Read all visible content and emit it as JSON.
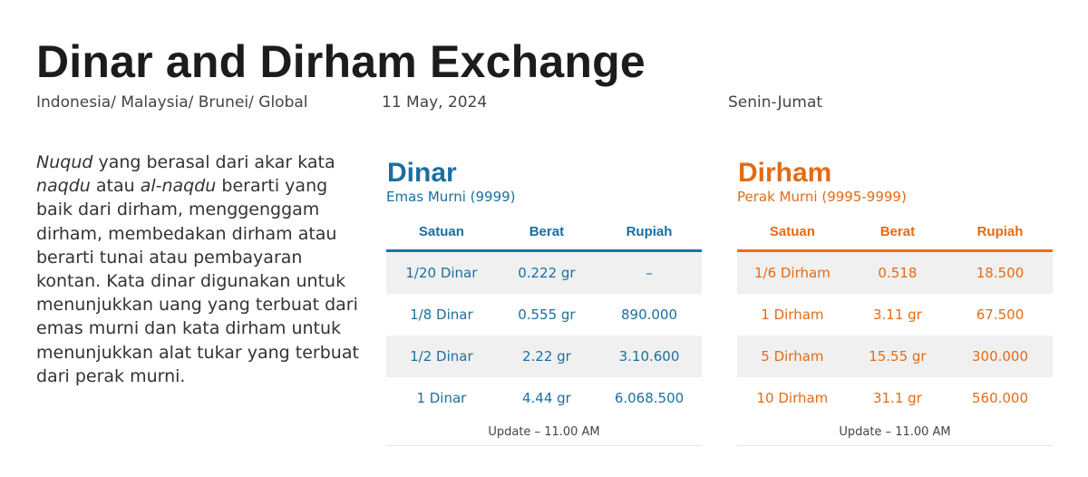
{
  "header": {
    "title": "Dinar and Dirham Exchange",
    "regions": "Indonesia/ Malaysia/ Brunei/ Global",
    "date": "11 May, 2024",
    "days": "Senin-Jumat"
  },
  "description": {
    "part1_italic": "Nuqud",
    "part2": " yang berasal dari akar kata ",
    "part3_italic": "naqdu",
    "part4": " atau ",
    "part5_italic": "al-naqdu",
    "part6": " berarti yang baik dari dirham, menggenggam dirham, membedakan dirham atau berarti tunai atau pembayaran kontan. Kata dinar digunakan untuk menunjukkan uang yang terbuat dari emas murni dan kata dirham untuk menunjukkan alat tukar yang terbuat dari perak murni."
  },
  "dinar": {
    "title": "Dinar",
    "subtitle": "Emas Murni (9999)",
    "columns": [
      "Satuan",
      "Berat",
      "Rupiah"
    ],
    "rows": [
      [
        "1/20 Dinar",
        "0.222 gr",
        "–"
      ],
      [
        "1/8 Dinar",
        "0.555 gr",
        "890.000"
      ],
      [
        "1/2 Dinar",
        "2.22 gr",
        "3.10.600"
      ],
      [
        "1 Dinar",
        "4.44 gr",
        "6.068.500"
      ]
    ],
    "footer": "Update – 11.00 AM"
  },
  "dirham": {
    "title": "Dirham",
    "subtitle": "Perak Murni (9995-9999)",
    "columns": [
      "Satuan",
      "Berat",
      "Rupiah"
    ],
    "rows": [
      [
        "1/6 Dirham",
        "0.518",
        "18.500"
      ],
      [
        "1 Dirham",
        "3.11 gr",
        "67.500"
      ],
      [
        "5 Dirham",
        "15.55 gr",
        "300.000"
      ],
      [
        "10 Dirham",
        "31.1 gr",
        "560.000"
      ]
    ],
    "footer": "Update – 11.00 AM"
  },
  "colors": {
    "dinar_accent": "#1a6fa0",
    "dirham_accent": "#e36b14",
    "row_shade": "#f0f0f0"
  }
}
